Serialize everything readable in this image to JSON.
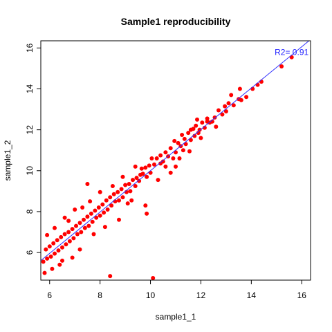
{
  "chart_data": {
    "type": "scatter",
    "title": "Sample1 reproducibility",
    "xlabel": "sample1_1",
    "ylabel": "sample1_2",
    "xlim": [
      5.65,
      16.35
    ],
    "ylim": [
      4.65,
      16.35
    ],
    "xticks": [
      "6",
      "8",
      "10",
      "12",
      "14",
      "16"
    ],
    "yticks": [
      "6",
      "8",
      "10",
      "12",
      "14",
      "16"
    ],
    "grid": false,
    "legend": "none",
    "point_color": "#ff0000",
    "fit_line": {
      "color": "#2f2fff",
      "intercept": -0.1,
      "slope": 1.01
    },
    "annotation": {
      "text": "R2= 0.91",
      "x": 15.6,
      "y": 15.8
    },
    "points": [
      [
        15.6,
        15.55
      ],
      [
        15.2,
        15.1
      ],
      [
        14.4,
        14.35
      ],
      [
        14.25,
        14.2
      ],
      [
        14.05,
        14.0
      ],
      [
        13.8,
        13.6
      ],
      [
        13.55,
        14.0
      ],
      [
        13.5,
        13.5
      ],
      [
        13.6,
        13.45
      ],
      [
        13.2,
        13.7
      ],
      [
        13.1,
        13.3
      ],
      [
        12.95,
        13.15
      ],
      [
        12.85,
        12.75
      ],
      [
        12.7,
        12.95
      ],
      [
        12.55,
        12.6
      ],
      [
        12.45,
        12.4
      ],
      [
        12.35,
        12.35
      ],
      [
        12.25,
        12.4
      ],
      [
        12.15,
        12.1
      ],
      [
        12.05,
        12.35
      ],
      [
        11.95,
        12.0
      ],
      [
        11.9,
        11.85
      ],
      [
        11.85,
        12.5
      ],
      [
        11.8,
        12.2
      ],
      [
        11.75,
        11.7
      ],
      [
        11.7,
        12.05
      ],
      [
        11.6,
        12.0
      ],
      [
        11.6,
        11.5
      ],
      [
        11.5,
        11.85
      ],
      [
        11.4,
        11.3
      ],
      [
        11.35,
        11.55
      ],
      [
        11.25,
        11.75
      ],
      [
        11.3,
        11.0
      ],
      [
        11.2,
        11.2
      ],
      [
        11.1,
        11.35
      ],
      [
        11.0,
        10.9
      ],
      [
        10.95,
        11.45
      ],
      [
        10.9,
        10.6
      ],
      [
        10.8,
        11.1
      ],
      [
        10.7,
        10.7
      ],
      [
        10.6,
        10.9
      ],
      [
        10.5,
        10.45
      ],
      [
        10.4,
        10.75
      ],
      [
        10.4,
        10.35
      ],
      [
        10.25,
        10.6
      ],
      [
        10.15,
        10.3
      ],
      [
        10.05,
        10.6
      ],
      [
        10.0,
        9.9
      ],
      [
        9.95,
        10.25
      ],
      [
        9.85,
        9.7
      ],
      [
        9.8,
        10.15
      ],
      [
        9.7,
        9.85
      ],
      [
        9.65,
        10.1
      ],
      [
        9.55,
        9.5
      ],
      [
        9.6,
        9.8
      ],
      [
        9.45,
        9.65
      ],
      [
        9.4,
        9.25
      ],
      [
        9.3,
        9.55
      ],
      [
        9.2,
        9.0
      ],
      [
        9.15,
        9.35
      ],
      [
        9.05,
        8.95
      ],
      [
        9.0,
        9.3
      ],
      [
        8.9,
        8.7
      ],
      [
        8.85,
        9.1
      ],
      [
        8.75,
        8.55
      ],
      [
        8.7,
        8.95
      ],
      [
        8.6,
        8.5
      ],
      [
        8.55,
        8.85
      ],
      [
        8.45,
        8.3
      ],
      [
        8.4,
        8.7
      ],
      [
        8.3,
        8.1
      ],
      [
        8.25,
        8.55
      ],
      [
        8.15,
        7.95
      ],
      [
        8.1,
        8.35
      ],
      [
        8.0,
        7.8
      ],
      [
        7.95,
        8.2
      ],
      [
        7.85,
        7.7
      ],
      [
        7.8,
        8.05
      ],
      [
        7.7,
        7.5
      ],
      [
        7.65,
        7.9
      ],
      [
        7.55,
        7.3
      ],
      [
        7.5,
        7.75
      ],
      [
        7.4,
        7.2
      ],
      [
        7.35,
        7.6
      ],
      [
        7.25,
        7.0
      ],
      [
        7.2,
        7.45
      ],
      [
        7.1,
        6.9
      ],
      [
        7.05,
        7.3
      ],
      [
        6.95,
        6.7
      ],
      [
        6.9,
        7.15
      ],
      [
        6.8,
        6.55
      ],
      [
        6.75,
        7.0
      ],
      [
        6.65,
        6.4
      ],
      [
        6.6,
        6.9
      ],
      [
        6.5,
        6.25
      ],
      [
        6.45,
        6.75
      ],
      [
        6.35,
        6.1
      ],
      [
        6.3,
        6.6
      ],
      [
        6.2,
        5.95
      ],
      [
        6.15,
        6.45
      ],
      [
        6.05,
        5.8
      ],
      [
        6.0,
        6.3
      ],
      [
        5.9,
        5.7
      ],
      [
        5.85,
        6.15
      ],
      [
        5.75,
        5.55
      ],
      [
        8.4,
        4.85
      ],
      [
        10.1,
        4.75
      ],
      [
        7.5,
        9.35
      ],
      [
        9.8,
        8.3
      ],
      [
        9.85,
        7.9
      ],
      [
        10.8,
        9.9
      ],
      [
        11.0,
        10.2
      ],
      [
        12.25,
        12.55
      ],
      [
        13.0,
        12.9
      ],
      [
        8.75,
        7.6
      ],
      [
        7.2,
        6.15
      ],
      [
        6.9,
        5.75
      ],
      [
        6.5,
        5.6
      ],
      [
        7.75,
        6.9
      ],
      [
        8.2,
        7.25
      ],
      [
        9.25,
        8.55
      ],
      [
        8.9,
        9.7
      ],
      [
        8.0,
        8.95
      ],
      [
        7.3,
        8.2
      ],
      [
        6.6,
        7.7
      ],
      [
        6.2,
        7.2
      ],
      [
        5.9,
        6.85
      ],
      [
        6.1,
        5.2
      ],
      [
        5.8,
        5.0
      ],
      [
        6.4,
        5.4
      ],
      [
        7.0,
        8.1
      ],
      [
        9.4,
        10.2
      ],
      [
        10.3,
        9.55
      ],
      [
        11.55,
        10.95
      ],
      [
        12.0,
        11.6
      ],
      [
        12.6,
        12.15
      ],
      [
        13.3,
        13.2
      ],
      [
        10.6,
        10.2
      ],
      [
        11.15,
        10.6
      ],
      [
        9.1,
        8.4
      ],
      [
        8.5,
        9.25
      ],
      [
        7.6,
        8.5
      ],
      [
        6.75,
        7.55
      ]
    ]
  }
}
